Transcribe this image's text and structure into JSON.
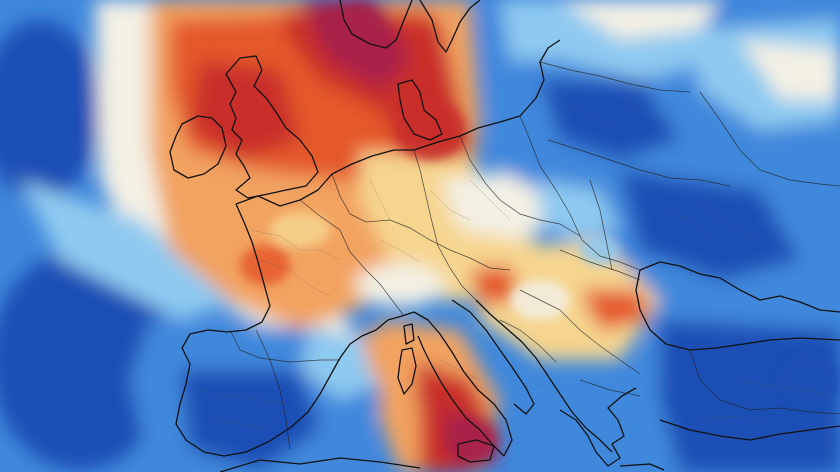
{
  "map": {
    "type": "temperature-anomaly",
    "region": "Europe",
    "colors": {
      "cold_deep": "#1f4fb5",
      "cold": "#3f88dc",
      "cool": "#8ec9f0",
      "neutral": "#f3f0e4",
      "warm_light": "#f6d58f",
      "warm": "#f2a361",
      "hot": "#e4582c",
      "very_hot": "#c92d2b",
      "extreme": "#a8224a"
    }
  }
}
